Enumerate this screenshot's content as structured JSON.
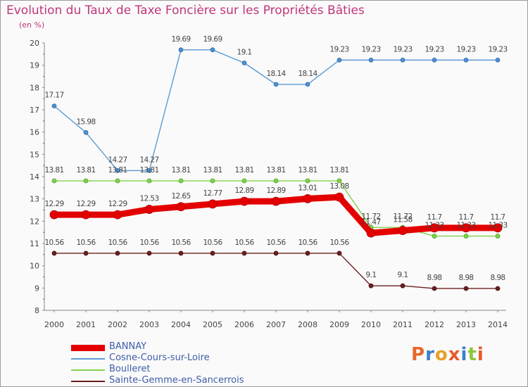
{
  "title": "Evolution du Taux de Taxe Foncière sur les Propriétés Bâties",
  "unit_label": "(en %)",
  "logo_text": "Proxiti",
  "chart_data": {
    "type": "line",
    "title": "Evolution du Taux de Taxe Foncière sur les Propriétés Bâties",
    "ylabel": "(en %)",
    "xlabel": "",
    "ylim": [
      8,
      20
    ],
    "y_ticks": [
      8,
      9,
      10,
      11,
      12,
      13,
      14,
      15,
      16,
      17,
      18,
      19,
      20
    ],
    "categories": [
      "2000",
      "2001",
      "2002",
      "2003",
      "2004",
      "2005",
      "2006",
      "2007",
      "2008",
      "2009",
      "2010",
      "2011",
      "2012",
      "2013",
      "2014"
    ],
    "series": [
      {
        "name": "BANNAY",
        "color": "#e40000",
        "values": [
          12.29,
          12.29,
          12.29,
          12.53,
          12.65,
          12.77,
          12.89,
          12.89,
          13.01,
          13.08,
          11.47,
          11.58,
          11.7,
          11.7,
          11.7
        ]
      },
      {
        "name": "Cosne-Cours-sur-Loire",
        "color": "#5b9bd5",
        "values": [
          17.17,
          15.98,
          14.27,
          14.27,
          19.69,
          19.69,
          19.1,
          18.14,
          18.14,
          19.23,
          19.23,
          19.23,
          19.23,
          19.23,
          19.23
        ]
      },
      {
        "name": "Boulleret",
        "color": "#7fd34a",
        "values": [
          13.81,
          13.81,
          13.81,
          13.81,
          13.81,
          13.81,
          13.81,
          13.81,
          13.81,
          13.81,
          11.72,
          11.72,
          11.33,
          11.33,
          11.33
        ]
      },
      {
        "name": "Sainte-Gemme-en-Sancerrois",
        "color": "#6b1f1f",
        "values": [
          10.56,
          10.56,
          10.56,
          10.56,
          10.56,
          10.56,
          10.56,
          10.56,
          10.56,
          10.56,
          9.1,
          9.1,
          8.98,
          8.98,
          8.98
        ]
      }
    ],
    "grid": false,
    "legend_position": "bottom-left"
  }
}
